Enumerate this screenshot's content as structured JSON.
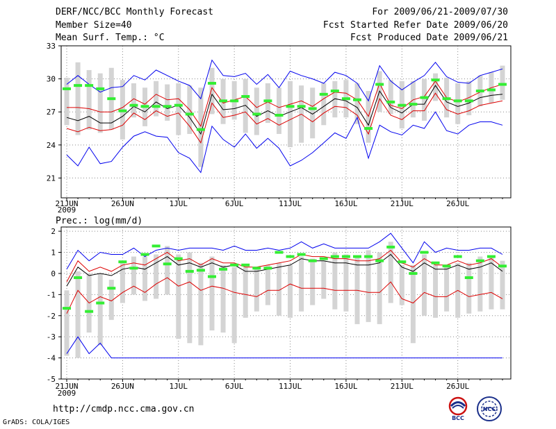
{
  "header": {
    "title": "DERF/NCC/BCC Monthly Forecast",
    "member_size": "Member Size=40",
    "variable": "Mean Surf. Temp.: °C",
    "period": "For 2009/06/21-2009/07/30",
    "started": "Fcst Started Refer Date 2009/06/20",
    "produced": "Fcst Produced Date 2009/06/21"
  },
  "footer": {
    "url": "http://cmdp.ncc.cma.gov.cn",
    "credit": "GrADS: COLA/IGES"
  },
  "logos": {
    "bcc": "BCC",
    "ncc": "NCC"
  },
  "colors": {
    "max_min": "#0000ee",
    "mean": "#000000",
    "sigma": "#dd0000",
    "bars": "#d4d4d4",
    "obs": "#33ee33",
    "grid": "#888888"
  },
  "chart_data": [
    {
      "type": "line",
      "title": "Mean Surf. Temp.: °C",
      "xlabel": "",
      "ylabel": "",
      "ylim": [
        19.2,
        33
      ],
      "yticks": [
        21,
        24,
        27,
        30,
        33
      ],
      "xtick_labels": [
        "21JUN",
        "26JUN",
        "1JUL",
        "6JUL",
        "11JUL",
        "16JUL",
        "21JUL",
        "26JUL"
      ],
      "year_label": "2009",
      "x": [
        1,
        2,
        3,
        4,
        5,
        6,
        7,
        8,
        9,
        10,
        11,
        12,
        13,
        14,
        15,
        16,
        17,
        18,
        19,
        20,
        21,
        22,
        23,
        24,
        25,
        26,
        27,
        28,
        29,
        30,
        31,
        32,
        33,
        34,
        35,
        36,
        37,
        38,
        39,
        40
      ],
      "series": [
        {
          "name": "max",
          "values": [
            29.5,
            30.3,
            29.5,
            28.8,
            29.2,
            29.3,
            30.3,
            29.9,
            30.8,
            30.3,
            29.8,
            29.4,
            28.2,
            31.7,
            30.3,
            30.2,
            30.5,
            29.5,
            30.4,
            29.2,
            30.7,
            30.3,
            30.0,
            29.6,
            30.6,
            30.3,
            29.6,
            28.0,
            31.2,
            29.8,
            29.0,
            29.7,
            30.3,
            31.5,
            30.2,
            29.7,
            29.6,
            30.3,
            30.6,
            30.9
          ]
        },
        {
          "name": "mean+sd",
          "values": [
            27.4,
            27.4,
            27.3,
            27.0,
            27.0,
            27.4,
            28.2,
            27.7,
            28.6,
            28.1,
            28.2,
            27.2,
            25.7,
            29.2,
            27.8,
            28.1,
            28.4,
            27.4,
            27.9,
            27.4,
            27.7,
            28.0,
            27.5,
            28.2,
            28.8,
            28.7,
            28.1,
            26.6,
            29.6,
            27.6,
            27.3,
            28.1,
            28.4,
            29.8,
            28.3,
            27.9,
            28.3,
            28.8,
            29.2,
            29.5
          ]
        },
        {
          "name": "mean",
          "values": [
            26.5,
            26.2,
            26.6,
            26.0,
            26.0,
            26.6,
            27.5,
            27.0,
            27.9,
            27.3,
            27.6,
            26.5,
            25.0,
            28.6,
            27.2,
            27.3,
            27.6,
            26.6,
            27.1,
            26.6,
            27.0,
            27.4,
            26.8,
            27.5,
            28.2,
            28.0,
            27.4,
            25.8,
            28.9,
            27.4,
            26.9,
            27.7,
            27.7,
            29.4,
            27.9,
            27.5,
            27.8,
            28.3,
            28.5,
            28.6
          ]
        },
        {
          "name": "mean-sd",
          "values": [
            25.5,
            25.2,
            25.6,
            25.3,
            25.4,
            25.8,
            26.9,
            26.3,
            27.1,
            26.6,
            26.9,
            25.7,
            24.2,
            27.8,
            26.5,
            26.7,
            27.0,
            25.9,
            26.4,
            25.8,
            26.3,
            26.8,
            26.1,
            26.9,
            27.5,
            27.4,
            26.7,
            25.0,
            28.2,
            26.7,
            26.3,
            27.1,
            27.1,
            28.7,
            27.2,
            26.8,
            27.1,
            27.6,
            27.8,
            28.0
          ]
        },
        {
          "name": "min",
          "values": [
            23.1,
            22.1,
            23.8,
            22.3,
            22.5,
            23.8,
            24.8,
            25.2,
            24.8,
            24.7,
            23.3,
            22.8,
            21.5,
            25.7,
            24.5,
            23.8,
            25.0,
            23.7,
            24.6,
            23.7,
            22.1,
            22.6,
            23.3,
            24.2,
            25.1,
            24.6,
            26.5,
            22.8,
            25.8,
            25.2,
            24.9,
            25.8,
            25.5,
            27.0,
            25.3,
            25.0,
            25.8,
            26.1,
            26.1,
            25.8
          ]
        },
        {
          "name": "bar_hi",
          "values": [
            30.1,
            31.5,
            30.8,
            30.5,
            31.0,
            29.9,
            29.6,
            29.2,
            29.8,
            29.5,
            29.6,
            29.4,
            29.2,
            31.0,
            30.0,
            29.8,
            30.0,
            29.2,
            29.6,
            29.2,
            29.8,
            29.4,
            29.2,
            29.6,
            29.8,
            29.9,
            29.6,
            28.9,
            30.7,
            29.9,
            29.8,
            29.8,
            30.0,
            30.5,
            30.1,
            29.6,
            29.8,
            30.3,
            30.6,
            31.2
          ]
        },
        {
          "name": "bar_lo",
          "values": [
            25.8,
            24.9,
            25.4,
            25.1,
            25.4,
            24.5,
            26.5,
            25.7,
            26.6,
            26.2,
            24.9,
            25.0,
            22.0,
            26.8,
            25.9,
            26.3,
            25.1,
            24.9,
            26.0,
            25.0,
            23.8,
            24.2,
            24.6,
            25.8,
            26.5,
            26.5,
            25.9,
            24.2,
            27.0,
            26.8,
            25.5,
            26.5,
            26.2,
            28.0,
            26.5,
            25.9,
            26.7,
            27.5,
            27.8,
            28.1
          ]
        },
        {
          "name": "obs",
          "values": [
            29.1,
            29.4,
            29.4,
            29.1,
            28.2,
            27.1,
            27.6,
            27.5,
            27.5,
            27.5,
            27.6,
            26.8,
            25.4,
            29.6,
            28.0,
            28.0,
            28.4,
            26.8,
            28.0,
            26.7,
            27.5,
            27.5,
            27.3,
            28.6,
            28.9,
            28.2,
            28.1,
            25.5,
            29.5,
            27.9,
            27.6,
            27.7,
            28.3,
            29.9,
            28.2,
            28.0,
            28.0,
            28.9,
            29.0,
            29.5
          ]
        }
      ]
    },
    {
      "type": "line",
      "title": "Prec.: log(mm/d)",
      "xlabel": "",
      "ylabel": "",
      "ylim": [
        -5,
        2.2
      ],
      "yticks": [
        -5,
        -4,
        -3,
        -2,
        -1,
        0,
        1,
        2
      ],
      "xtick_labels": [
        "21JUN",
        "26JUN",
        "1JUL",
        "6JUL",
        "11JUL",
        "16JUL",
        "21JUL",
        "26JUL"
      ],
      "year_label": "2009",
      "x": [
        1,
        2,
        3,
        4,
        5,
        6,
        7,
        8,
        9,
        10,
        11,
        12,
        13,
        14,
        15,
        16,
        17,
        18,
        19,
        20,
        21,
        22,
        23,
        24,
        25,
        26,
        27,
        28,
        29,
        30,
        31,
        32,
        33,
        34,
        35,
        36,
        37,
        38,
        39,
        40
      ],
      "series": [
        {
          "name": "max",
          "values": [
            0.2,
            1.1,
            0.6,
            1.0,
            0.9,
            0.9,
            1.2,
            0.8,
            1.1,
            1.2,
            1.1,
            1.2,
            1.2,
            1.2,
            1.1,
            1.3,
            1.1,
            1.1,
            1.2,
            1.1,
            1.2,
            1.5,
            1.2,
            1.4,
            1.2,
            1.2,
            1.2,
            1.2,
            1.5,
            1.9,
            1.2,
            0.5,
            1.5,
            1.0,
            1.2,
            1.1,
            1.1,
            1.2,
            1.2,
            0.9
          ]
        },
        {
          "name": "mean+sd",
          "values": [
            -0.4,
            0.6,
            0.1,
            0.3,
            0.1,
            0.4,
            0.5,
            0.4,
            0.7,
            1.0,
            0.6,
            0.7,
            0.4,
            0.7,
            0.5,
            0.5,
            0.3,
            0.3,
            0.4,
            0.5,
            0.6,
            0.9,
            0.8,
            0.8,
            0.7,
            0.7,
            0.6,
            0.6,
            0.7,
            1.1,
            0.5,
            0.3,
            0.7,
            0.4,
            0.4,
            0.6,
            0.4,
            0.5,
            0.7,
            0.3
          ]
        },
        {
          "name": "mean",
          "values": [
            -0.6,
            0.3,
            -0.1,
            0.0,
            -0.1,
            0.2,
            0.3,
            0.2,
            0.5,
            0.8,
            0.4,
            0.5,
            0.3,
            0.5,
            0.3,
            0.4,
            0.1,
            0.1,
            0.2,
            0.3,
            0.4,
            0.7,
            0.6,
            0.6,
            0.5,
            0.5,
            0.4,
            0.4,
            0.5,
            0.9,
            0.3,
            0.1,
            0.5,
            0.2,
            0.2,
            0.4,
            0.2,
            0.3,
            0.5,
            0.1
          ]
        },
        {
          "name": "mean-sd",
          "values": [
            -1.9,
            -0.8,
            -1.4,
            -1.1,
            -1.3,
            -0.9,
            -0.6,
            -0.9,
            -0.5,
            -0.2,
            -0.6,
            -0.4,
            -0.8,
            -0.6,
            -0.7,
            -0.9,
            -1.0,
            -1.1,
            -0.8,
            -0.8,
            -0.5,
            -0.7,
            -0.7,
            -0.7,
            -0.8,
            -0.8,
            -0.8,
            -0.9,
            -0.9,
            -0.4,
            -1.2,
            -1.4,
            -0.9,
            -1.1,
            -1.1,
            -0.8,
            -1.1,
            -1.0,
            -0.9,
            -1.2
          ]
        },
        {
          "name": "min",
          "values": [
            -3.8,
            -3.0,
            -3.8,
            -3.3,
            -4.0,
            -4.0,
            -4.0,
            -4.0,
            -4.0,
            -4.0,
            -4.0,
            -4.0,
            -4.0,
            -4.0,
            -4.0,
            -4.0,
            -4.0,
            -4.0,
            -4.0,
            -4.0,
            -4.0,
            -4.0,
            -4.0,
            -4.0,
            -4.0,
            -4.0,
            -4.0,
            -4.0,
            -4.0,
            -4.0,
            -4.0,
            -4.0,
            -4.0,
            -4.0,
            -4.0,
            -4.0,
            -4.0,
            -4.0,
            -4.0,
            -4.0
          ]
        },
        {
          "name": "bar_hi",
          "values": [
            -0.8,
            0.1,
            0.0,
            0.0,
            -0.3,
            0.5,
            0.8,
            0.8,
            0.9,
            1.3,
            0.9,
            1.0,
            0.5,
            0.8,
            0.4,
            0.3,
            0.3,
            0.3,
            0.4,
            0.5,
            0.4,
            0.8,
            0.7,
            0.6,
            1.0,
            0.9,
            0.8,
            1.1,
            1.0,
            1.5,
            0.4,
            0.4,
            0.9,
            0.4,
            0.4,
            0.5,
            0.5,
            0.8,
            0.8,
            0.6
          ]
        },
        {
          "name": "bar_lo",
          "values": [
            -3.9,
            -4.0,
            -2.8,
            -3.4,
            -2.2,
            -1.4,
            -1.0,
            -1.3,
            -1.2,
            -1.0,
            -3.1,
            -3.3,
            -3.4,
            -2.7,
            -2.8,
            -3.3,
            -2.1,
            -1.8,
            -1.5,
            -2.0,
            -2.1,
            -1.8,
            -1.5,
            -1.2,
            -1.7,
            -1.8,
            -2.4,
            -2.3,
            -2.4,
            -1.4,
            -1.5,
            -3.3,
            -2.0,
            -2.1,
            -1.8,
            -2.1,
            -1.9,
            -1.8,
            -1.7,
            -1.7
          ]
        },
        {
          "name": "obs",
          "values": [
            -1.65,
            -0.2,
            -1.8,
            -1.4,
            -0.7,
            0.55,
            0.25,
            0.9,
            1.3,
            0.45,
            0.7,
            0.1,
            0.15,
            -0.15,
            0.2,
            0.4,
            0.4,
            0.25,
            0.25,
            1.0,
            0.8,
            0.9,
            0.6,
            0.7,
            0.8,
            0.8,
            0.8,
            0.8,
            0.6,
            1.25,
            0.55,
            0.0,
            1.0,
            0.5,
            0.35,
            0.8,
            -0.2,
            0.6,
            0.8,
            0.35
          ]
        }
      ]
    }
  ]
}
